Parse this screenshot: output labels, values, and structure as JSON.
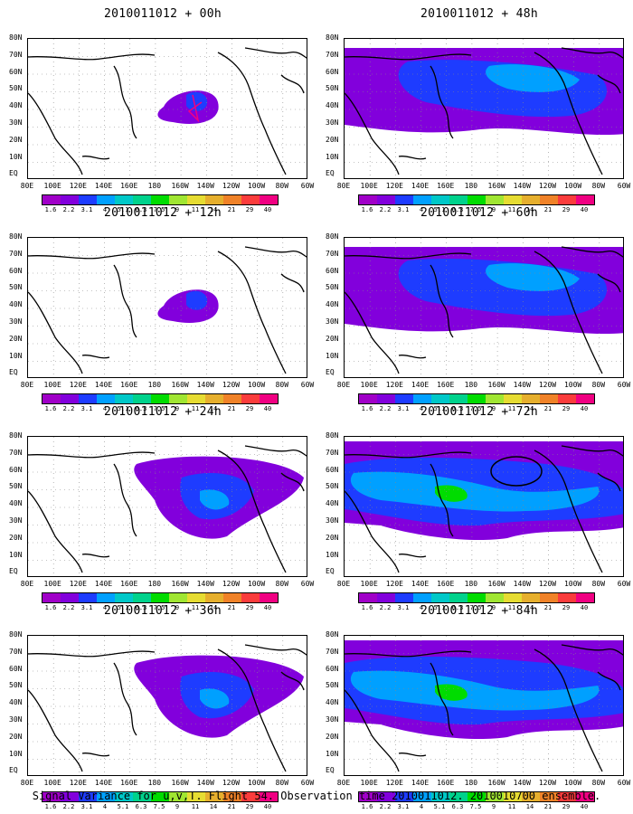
{
  "panels": [
    {
      "title": "2010011012 + 00h",
      "col": 0,
      "row": 0,
      "fill": "low"
    },
    {
      "title": "2010011012 + 48h",
      "col": 1,
      "row": 0,
      "fill": "mid"
    },
    {
      "title": "2010011012 + 12h",
      "col": 0,
      "row": 1,
      "fill": "low"
    },
    {
      "title": "2010011012 + 60h",
      "col": 1,
      "row": 1,
      "fill": "mid"
    },
    {
      "title": "2010011012 + 24h",
      "col": 0,
      "row": 2,
      "fill": "lowmid"
    },
    {
      "title": "2010011012 + 72h",
      "col": 1,
      "row": 2,
      "fill": "high"
    },
    {
      "title": "2010011012 + 36h",
      "col": 0,
      "row": 3,
      "fill": "lowmid"
    },
    {
      "title": "2010011012 + 84h",
      "col": 1,
      "row": 3,
      "fill": "high"
    }
  ],
  "lat_labels": [
    "80N",
    "70N",
    "60N",
    "50N",
    "40N",
    "30N",
    "20N",
    "10N",
    "EQ"
  ],
  "lon_labels": [
    "80E",
    "100E",
    "120E",
    "140E",
    "160E",
    "180",
    "160W",
    "140W",
    "120W",
    "100W",
    "80W",
    "60W"
  ],
  "colorbar": {
    "labels": [
      "1.6",
      "2.2",
      "3.1",
      "4",
      "5.1",
      "6.3",
      "7.5",
      "9",
      "11",
      "14",
      "21",
      "29",
      "40"
    ],
    "colors": [
      "#a000c8",
      "#8200dc",
      "#1e3cff",
      "#00a0ff",
      "#00c8c8",
      "#00d28c",
      "#00dc00",
      "#a0e632",
      "#e6dc32",
      "#e6af2d",
      "#f08228",
      "#fa3c3c",
      "#f00082"
    ]
  },
  "footer": "Signal Variance for u,v,T. Flight 54. Observation time 2010011012. 2010010700 ensemble."
}
